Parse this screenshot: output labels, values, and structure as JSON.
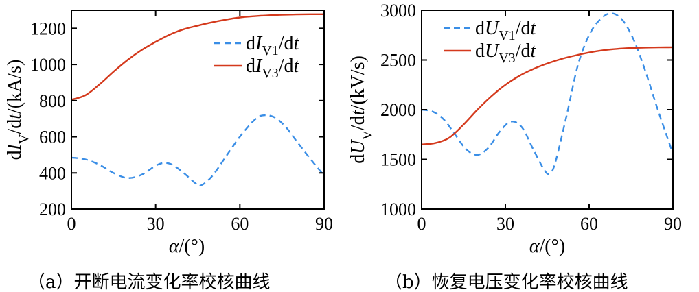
{
  "colors": {
    "v1": "#3a8ee6",
    "v3": "#d4391c",
    "axis": "#000000"
  },
  "chart_data": [
    {
      "type": "line",
      "caption": "（a）开断电流变化率校核曲线",
      "ylabel": "dI_V/dt/(kA/s)",
      "xlabel": "α/(°)",
      "xlim": [
        0,
        90
      ],
      "ylim": [
        200,
        1300
      ],
      "xticks": [
        "0",
        "30",
        "60",
        "90"
      ],
      "yticks": [
        "200",
        "400",
        "600",
        "800",
        "1000",
        "1200"
      ],
      "legend_position": "top-right",
      "series": [
        {
          "name": "dI_V1/dt",
          "label_main": "dI",
          "label_sub": "V1",
          "label_tail": "/dt",
          "style": "dashed",
          "x": [
            0,
            5,
            10,
            15,
            20,
            25,
            30,
            33,
            36,
            40,
            44,
            46,
            50,
            55,
            60,
            65,
            68,
            72,
            76,
            80,
            85,
            90
          ],
          "y": [
            485,
            475,
            445,
            400,
            372,
            390,
            440,
            455,
            445,
            400,
            345,
            330,
            380,
            490,
            600,
            690,
            718,
            710,
            660,
            580,
            480,
            385
          ]
        },
        {
          "name": "dI_V3/dt",
          "label_main": "dI",
          "label_sub": "V3",
          "label_tail": "/dt",
          "style": "solid",
          "x": [
            0,
            5,
            10,
            15,
            20,
            25,
            30,
            35,
            40,
            45,
            50,
            55,
            60,
            65,
            70,
            75,
            80,
            85,
            90
          ],
          "y": [
            805,
            830,
            890,
            960,
            1025,
            1080,
            1125,
            1165,
            1195,
            1215,
            1233,
            1248,
            1260,
            1267,
            1272,
            1275,
            1277,
            1278,
            1278
          ]
        }
      ]
    },
    {
      "type": "line",
      "caption": "（b）恢复电压变化率校核曲线",
      "ylabel": "dU_V/dt/(kV/s)",
      "xlabel": "α/(°)",
      "xlim": [
        0,
        90
      ],
      "ylim": [
        1000,
        3000
      ],
      "xticks": [
        "0",
        "30",
        "60",
        "90"
      ],
      "yticks": [
        "1000",
        "1500",
        "2000",
        "2500",
        "3000"
      ],
      "legend_position": "top-left",
      "series": [
        {
          "name": "dU_V1/dt",
          "label_main": "dU",
          "label_sub": "V1",
          "label_tail": "/dt",
          "style": "dashed",
          "x": [
            0,
            4,
            8,
            12,
            16,
            20,
            24,
            28,
            32,
            36,
            40,
            44,
            46,
            48,
            52,
            56,
            60,
            64,
            68,
            72,
            76,
            80,
            84,
            88,
            90
          ],
          "y": [
            2000,
            1980,
            1900,
            1750,
            1600,
            1545,
            1620,
            1780,
            1880,
            1820,
            1600,
            1390,
            1360,
            1480,
            1950,
            2450,
            2750,
            2910,
            2970,
            2900,
            2700,
            2400,
            2050,
            1720,
            1560
          ]
        },
        {
          "name": "dU_V3/dt",
          "label_main": "dU",
          "label_sub": "V3",
          "label_tail": "/dt",
          "style": "solid",
          "x": [
            0,
            5,
            10,
            15,
            20,
            25,
            30,
            35,
            40,
            45,
            50,
            55,
            60,
            65,
            70,
            75,
            80,
            85,
            90
          ],
          "y": [
            1650,
            1665,
            1720,
            1850,
            2000,
            2135,
            2250,
            2340,
            2410,
            2465,
            2510,
            2545,
            2575,
            2598,
            2612,
            2620,
            2625,
            2627,
            2628
          ]
        }
      ]
    }
  ]
}
